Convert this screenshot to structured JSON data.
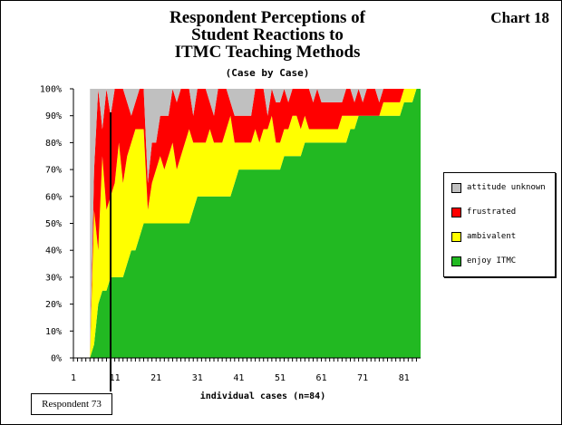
{
  "chart_number": "Chart 18",
  "chart_data": {
    "type": "area",
    "stacked": "percent",
    "title_lines": [
      "Respondent Perceptions of",
      "Student Reactions to",
      "ITMC Teaching Methods"
    ],
    "subtitle": "(Case by Case)",
    "xlabel": "individual cases (n=84)",
    "ylabel": "",
    "x_ticks": [
      "1",
      "11",
      "21",
      "31",
      "41",
      "51",
      "61",
      "71",
      "81"
    ],
    "y_ticks": [
      "0%",
      "10%",
      "20%",
      "30%",
      "40%",
      "50%",
      "60%",
      "70%",
      "80%",
      "90%",
      "100%"
    ],
    "xlim": [
      1,
      85
    ],
    "ylim": [
      0,
      100
    ],
    "grid": false,
    "legend_position": "right",
    "series_colors": [
      "#22b922",
      "#ffff00",
      "#ff0000",
      "#c0c0c0"
    ],
    "x": [
      5,
      6,
      7,
      8,
      9,
      10,
      11,
      12,
      13,
      14,
      15,
      16,
      17,
      18,
      19,
      20,
      21,
      22,
      23,
      24,
      25,
      26,
      27,
      28,
      29,
      30,
      31,
      32,
      33,
      34,
      35,
      36,
      37,
      38,
      39,
      40,
      41,
      42,
      43,
      44,
      45,
      46,
      47,
      48,
      49,
      50,
      51,
      52,
      53,
      54,
      55,
      56,
      57,
      58,
      59,
      60,
      61,
      62,
      63,
      64,
      65,
      66,
      67,
      68,
      69,
      70,
      71,
      72,
      73,
      74,
      75,
      76,
      77,
      78,
      79,
      80,
      81,
      82,
      83,
      84,
      85
    ],
    "series": [
      {
        "name": "enjoy ITMC",
        "values": [
          0,
          5,
          20,
          25,
          25,
          30,
          30,
          30,
          30,
          35,
          40,
          40,
          45,
          50,
          50,
          50,
          50,
          50,
          50,
          50,
          50,
          50,
          50,
          50,
          50,
          55,
          60,
          60,
          60,
          60,
          60,
          60,
          60,
          60,
          60,
          65,
          70,
          70,
          70,
          70,
          70,
          70,
          70,
          70,
          70,
          70,
          70,
          75,
          75,
          75,
          75,
          75,
          80,
          80,
          80,
          80,
          80,
          80,
          80,
          80,
          80,
          80,
          80,
          85,
          85,
          90,
          90,
          90,
          90,
          90,
          90,
          90,
          90,
          90,
          90,
          90,
          95,
          95,
          95,
          100,
          100
        ]
      },
      {
        "name": "ambivalent",
        "values": [
          0,
          50,
          20,
          50,
          30,
          30,
          35,
          50,
          35,
          40,
          40,
          45,
          40,
          35,
          5,
          15,
          20,
          25,
          20,
          25,
          30,
          20,
          25,
          30,
          35,
          25,
          20,
          20,
          20,
          25,
          20,
          20,
          20,
          25,
          30,
          15,
          10,
          10,
          10,
          10,
          15,
          10,
          15,
          15,
          20,
          10,
          10,
          10,
          10,
          15,
          15,
          10,
          10,
          5,
          5,
          5,
          5,
          5,
          5,
          5,
          5,
          10,
          10,
          5,
          5,
          0,
          0,
          0,
          0,
          0,
          0,
          5,
          5,
          5,
          5,
          5,
          5,
          5,
          5,
          0,
          0
        ]
      },
      {
        "name": "frustrated",
        "values": [
          0,
          15,
          60,
          10,
          45,
          30,
          35,
          20,
          35,
          20,
          10,
          10,
          15,
          15,
          10,
          15,
          10,
          15,
          20,
          15,
          20,
          25,
          25,
          20,
          15,
          10,
          20,
          20,
          20,
          10,
          10,
          20,
          20,
          15,
          5,
          10,
          10,
          10,
          10,
          10,
          15,
          20,
          15,
          5,
          10,
          15,
          15,
          15,
          10,
          10,
          10,
          15,
          10,
          15,
          10,
          15,
          10,
          10,
          10,
          10,
          10,
          5,
          10,
          10,
          5,
          10,
          5,
          10,
          10,
          10,
          5,
          5,
          5,
          5,
          5,
          5,
          0,
          0,
          0,
          0,
          0
        ]
      },
      {
        "name": "attitude unknown",
        "values": [
          100,
          30,
          0,
          15,
          0,
          10,
          0,
          0,
          0,
          5,
          10,
          5,
          0,
          0,
          35,
          20,
          20,
          10,
          10,
          10,
          0,
          5,
          0,
          0,
          0,
          10,
          0,
          0,
          0,
          5,
          10,
          0,
          0,
          0,
          5,
          10,
          10,
          10,
          10,
          10,
          0,
          0,
          0,
          10,
          0,
          5,
          5,
          0,
          5,
          0,
          0,
          0,
          0,
          0,
          5,
          0,
          5,
          5,
          5,
          5,
          5,
          5,
          0,
          0,
          5,
          0,
          5,
          0,
          0,
          0,
          5,
          0,
          0,
          0,
          0,
          0,
          0,
          0,
          0,
          0,
          0
        ]
      }
    ],
    "annotation": {
      "text": "Respondent 73",
      "x": 10
    }
  }
}
